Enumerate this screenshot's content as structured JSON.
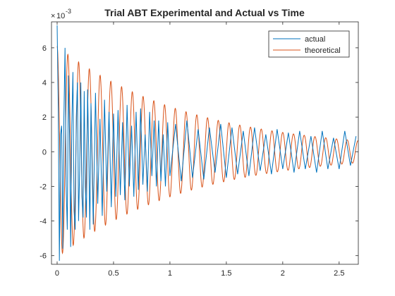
{
  "chart_data": {
    "type": "line",
    "title": "Trial ABT Experimental and Actual vs Time",
    "xlabel": "",
    "ylabel": "",
    "y_exponent_label": "10",
    "y_exponent_power": "-3",
    "y_exponent_prefix": "×",
    "xlim": [
      -0.05,
      2.67
    ],
    "ylim": [
      -6.5,
      7.5
    ],
    "xticks": [
      0,
      0.5,
      1,
      1.5,
      2,
      2.5
    ],
    "xtick_labels": [
      "0",
      "0.5",
      "1",
      "1.5",
      "2",
      "2.5"
    ],
    "yticks": [
      -6,
      -4,
      -2,
      0,
      2,
      4,
      6
    ],
    "ytick_labels": [
      "-6",
      "-4",
      "-2",
      "0",
      "2",
      "4",
      "6"
    ],
    "grid": false,
    "legend_position": "top-right",
    "series": [
      {
        "name": "actual",
        "color": "#0072BD",
        "description_values_units": "×10^-3",
        "x": [
          0.0,
          0.01,
          0.02,
          0.03,
          0.04,
          0.05,
          0.06,
          0.07,
          0.08,
          0.09,
          0.1,
          0.11,
          0.12,
          0.13,
          0.14,
          0.15,
          0.16,
          0.17,
          0.18,
          0.19,
          0.2,
          0.21,
          0.22,
          0.23,
          0.24,
          0.25,
          0.26,
          0.27,
          0.28,
          0.29,
          0.3,
          0.32,
          0.34,
          0.36,
          0.38,
          0.4,
          0.42,
          0.44,
          0.46,
          0.48,
          0.5,
          0.52,
          0.54,
          0.56,
          0.58,
          0.6,
          0.62,
          0.64,
          0.66,
          0.68,
          0.7,
          0.72,
          0.74,
          0.76,
          0.78,
          0.8,
          0.82,
          0.84,
          0.86,
          0.88,
          0.9,
          0.92,
          0.94,
          0.96,
          0.98,
          1.0,
          1.05,
          1.1,
          1.15,
          1.2,
          1.25,
          1.3,
          1.35,
          1.4,
          1.45,
          1.5,
          1.55,
          1.6,
          1.65,
          1.7,
          1.75,
          1.8,
          1.85,
          1.9,
          1.95,
          2.0,
          2.05,
          2.1,
          2.15,
          2.2,
          2.25,
          2.3,
          2.35,
          2.4,
          2.45,
          2.5,
          2.55,
          2.6,
          2.65
        ],
        "y": [
          7.3,
          2.5,
          -6.3,
          1.0,
          1.5,
          -5.6,
          2.0,
          6.0,
          -2.0,
          -4.5,
          4.4,
          1.0,
          -5.5,
          1.5,
          4.6,
          -3.4,
          -4.5,
          2.0,
          4.0,
          -4.0,
          -1.0,
          4.0,
          -2.6,
          -3.8,
          3.5,
          -2.0,
          -3.8,
          3.6,
          0.0,
          -4.5,
          2.8,
          -4.2,
          3.4,
          -3.0,
          1.9,
          -3.7,
          3.0,
          -2.3,
          2.3,
          -3.2,
          2.2,
          -2.6,
          2.4,
          -2.5,
          1.7,
          -2.8,
          2.7,
          -2.0,
          1.5,
          -2.6,
          2.3,
          -2.2,
          2.5,
          -1.9,
          1.0,
          -2.3,
          2.3,
          -1.4,
          1.8,
          -2.0,
          1.8,
          -1.7,
          1.0,
          -2.0,
          1.7,
          -1.4,
          1.6,
          -1.7,
          1.8,
          -1.5,
          1.3,
          -1.6,
          1.4,
          -1.2,
          1.6,
          -1.5,
          1.4,
          -1.3,
          1.2,
          -1.4,
          1.4,
          -1.1,
          1.0,
          -1.3,
          1.3,
          -1.0,
          1.1,
          -1.2,
          1.2,
          -1.0,
          0.9,
          -1.2,
          1.2,
          -1.0,
          0.8,
          -1.0,
          1.2,
          -0.8,
          0.9
        ]
      },
      {
        "name": "theoretical",
        "color": "#D95319",
        "amplitude_at_t0": 6.1,
        "decay_rate_per_s": 0.85,
        "frequency_hz": 10.5,
        "phase_offset_rad": 0.0
      }
    ]
  }
}
